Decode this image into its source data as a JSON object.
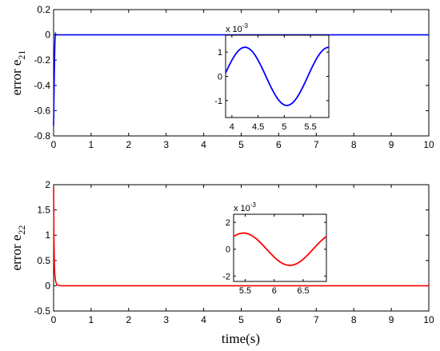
{
  "chart_data": [
    {
      "type": "line",
      "ylabel": "error e",
      "ylabel_sub": "21",
      "xlabel": "",
      "xlim": [
        0,
        10
      ],
      "ylim": [
        -0.8,
        0.2
      ],
      "xticks": [
        0,
        1,
        2,
        3,
        4,
        5,
        6,
        7,
        8,
        9,
        10
      ],
      "yticks": [
        0.2,
        0,
        -0.2,
        -0.4,
        -0.6,
        -0.8
      ],
      "grid": false,
      "series": [
        {
          "color": "#0000ff",
          "x": [
            0,
            0.01,
            0.02,
            0.03,
            0.04,
            0.05,
            0.07,
            0.1,
            0.15,
            0.2,
            0.3,
            10
          ],
          "y": [
            -0.72,
            -0.5,
            -0.3,
            -0.12,
            -0.02,
            0.01,
            0.0,
            0.0,
            0.0,
            0.0,
            0.0,
            0.0
          ]
        }
      ],
      "inset": {
        "type": "line",
        "exponent_label": "x 10",
        "exponent_power": "-3",
        "xlim": [
          3.88,
          5.85
        ],
        "ylim": [
          -1.7,
          1.7
        ],
        "xticks": [
          4,
          4.5,
          5,
          5.5
        ],
        "xtick_labels": [
          "4",
          "4.5",
          "5",
          "5.5"
        ],
        "yticks": [
          1,
          0,
          -1
        ],
        "series": [
          {
            "color": "#0000ff",
            "function": "1.2*sin(2*pi*(t-3.85)/1.6)",
            "x_range": [
              3.88,
              5.85
            ]
          }
        ]
      }
    },
    {
      "type": "line",
      "ylabel": "error e",
      "ylabel_sub": "22",
      "xlabel": "time(s)",
      "xlim": [
        0,
        10
      ],
      "ylim": [
        -0.5,
        2
      ],
      "xticks": [
        0,
        1,
        2,
        3,
        4,
        5,
        6,
        7,
        8,
        9,
        10
      ],
      "yticks": [
        2,
        1.5,
        1,
        0.5,
        0,
        -0.5
      ],
      "grid": false,
      "series": [
        {
          "color": "#ff0000",
          "x": [
            0,
            0.01,
            0.02,
            0.03,
            0.05,
            0.08,
            0.12,
            0.2,
            0.3,
            10
          ],
          "y": [
            1.95,
            0.9,
            0.45,
            0.25,
            0.1,
            0.03,
            0.01,
            0.0,
            0.0,
            0.0
          ]
        }
      ],
      "inset": {
        "type": "line",
        "exponent_label": "x 10",
        "exponent_power": "-3",
        "xlim": [
          5.3,
          6.9
        ],
        "ylim": [
          -2.4,
          2.6
        ],
        "xticks": [
          5.5,
          6,
          6.5
        ],
        "xtick_labels": [
          "5.5",
          "6",
          "6.5"
        ],
        "yticks": [
          2,
          0,
          -2
        ],
        "series": [
          {
            "color": "#ff0000",
            "function": "1.2*sin(2*pi*(t-5.07)/1.6)",
            "x_range": [
              5.3,
              6.9
            ]
          }
        ]
      }
    }
  ]
}
